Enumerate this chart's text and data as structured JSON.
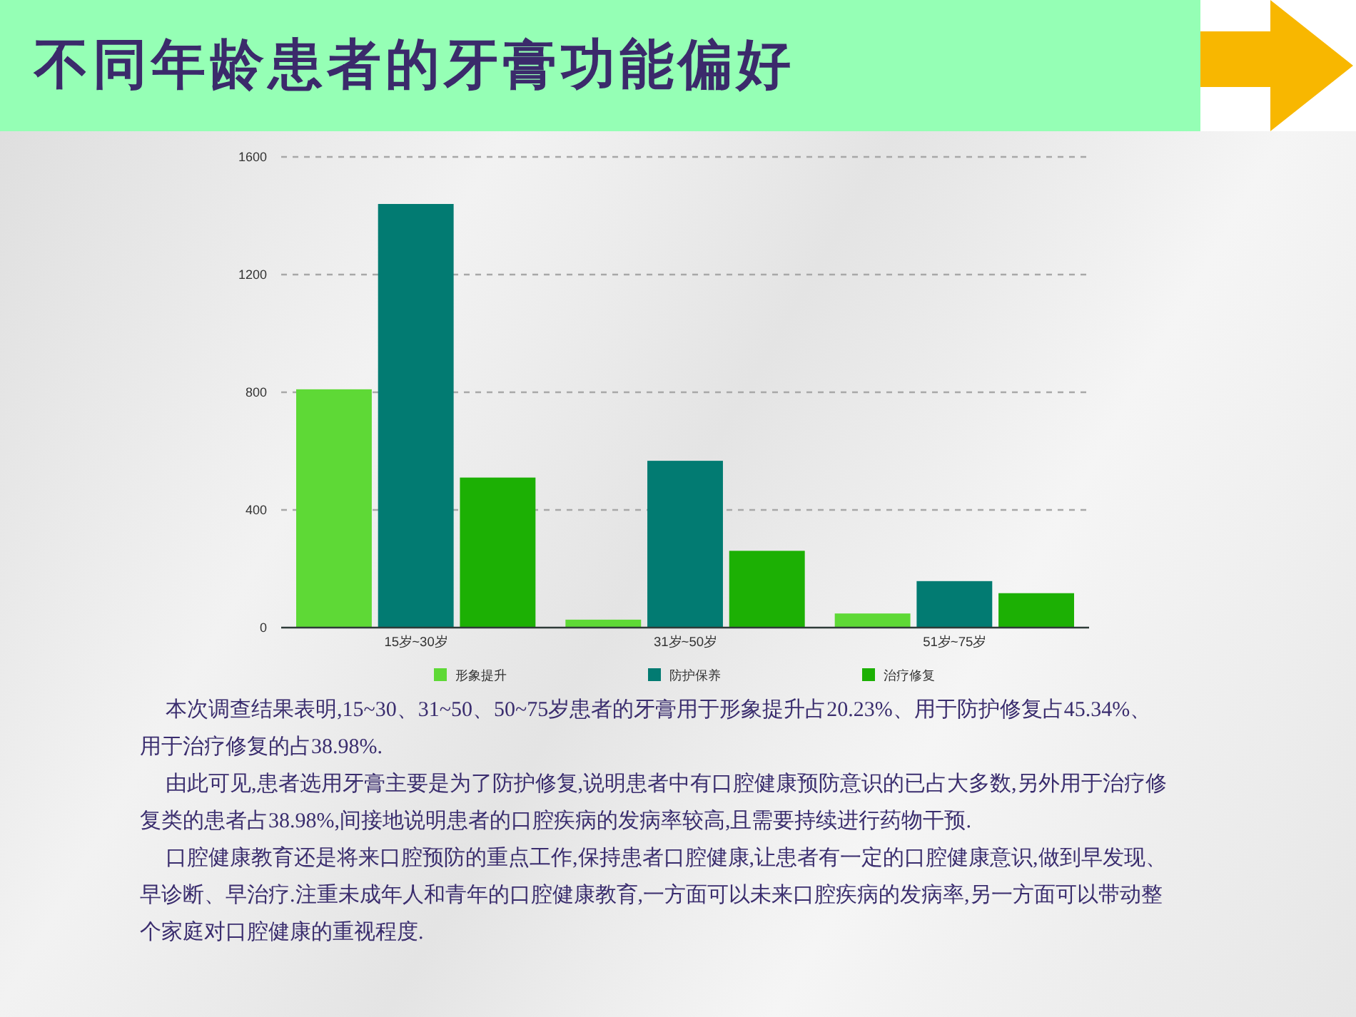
{
  "chart_data": {
    "type": "bar",
    "title": "不同年龄患者的牙膏功能偏好",
    "categories": [
      "15岁~30岁",
      "31岁~50岁",
      "51岁~75岁"
    ],
    "series": [
      {
        "name": "形象提升",
        "color": "#5ed936",
        "values": [
          810,
          27,
          48
        ]
      },
      {
        "name": "防护保养",
        "color": "#027b72",
        "values": [
          1440,
          567,
          158
        ]
      },
      {
        "name": "治疗修复",
        "color": "#1cb004",
        "values": [
          510,
          261,
          117
        ]
      }
    ],
    "ylim": [
      0,
      1600
    ],
    "yticks": [
      0,
      400,
      800,
      1200,
      1600
    ],
    "grid": "y",
    "legend": "bottom",
    "annotations": [
      "本次调查结果表明,15~30、31~50、50~75岁患者的牙膏用于形象提升占20.23%、用于防护修复占45.34%、用于治疗修复的占38.98%.",
      "由此可见,患者选用牙膏主要是为了防护修复,说明患者中有口腔健康预防意识的已占大多数,另外用于治疗修复类的患者占38.98%,间接地说明患者的口腔疾病的发病率较高,且需要持续进行药物干预.",
      "口腔健康教育还是将来口腔预防的重点工作,保持患者口腔健康,让患者有一定的口腔健康意识,做到早发现、早诊断、早治疗.注重未成年人和青年的口腔健康教育,一方面可以未来口腔疾病的发病率,另一方面可以带动整个家庭对口腔健康的重视程度."
    ]
  }
}
